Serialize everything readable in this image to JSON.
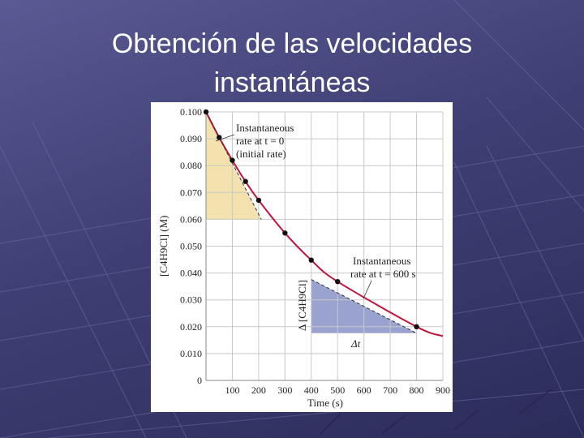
{
  "slide": {
    "title_line1": "Obtención de las velocidades",
    "title_line2": "instantáneas"
  },
  "colors": {
    "curve": "#c0143c",
    "initial_rate_fill": "#f3e2ad",
    "rate_600_fill": "#9aa3cf",
    "grid": "#c8c8c8"
  },
  "chart_data": {
    "type": "line",
    "xlabel": "Time (s)",
    "ylabel": "[C4H9Cl] (M)",
    "xlim": [
      0,
      900
    ],
    "ylim": [
      0,
      0.1
    ],
    "x_ticks": [
      100,
      200,
      300,
      400,
      500,
      600,
      700,
      800,
      900
    ],
    "y_ticks": [
      "0",
      "0.010",
      "0.020",
      "0.030",
      "0.040",
      "0.050",
      "0.060",
      "0.070",
      "0.080",
      "0.090",
      "0.100"
    ],
    "grid": true,
    "points": [
      {
        "x": 0,
        "y": 0.1
      },
      {
        "x": 50,
        "y": 0.0905
      },
      {
        "x": 100,
        "y": 0.082
      },
      {
        "x": 150,
        "y": 0.0741
      },
      {
        "x": 200,
        "y": 0.0671
      },
      {
        "x": 300,
        "y": 0.0549
      },
      {
        "x": 400,
        "y": 0.0448
      },
      {
        "x": 500,
        "y": 0.0368
      },
      {
        "x": 800,
        "y": 0.02
      }
    ],
    "curve_end": {
      "x": 900,
      "y": 0.0165
    },
    "tangent_initial": {
      "x0": 0,
      "y0": 0.1,
      "x1": 210,
      "y1": 0.06
    },
    "tangent_600": {
      "x0": 400,
      "y0": 0.0376,
      "x1": 800,
      "y1": 0.0176
    },
    "annotations": {
      "initial_line1": "Instantaneous",
      "initial_line2": "rate at t = 0",
      "initial_line3": "(initial rate)",
      "t600_line1": "Instantaneous",
      "t600_line2": "rate at t = 600 s",
      "delta_conc": "Δ [C4H9Cl]",
      "delta_t": "Δt"
    }
  }
}
